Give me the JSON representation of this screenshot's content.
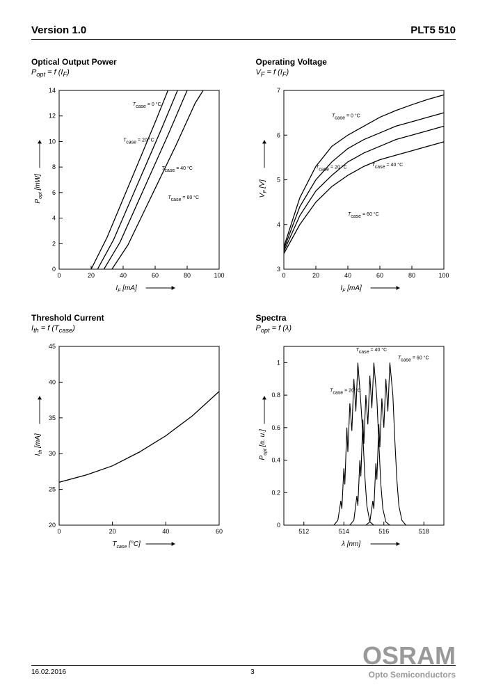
{
  "header": {
    "version": "Version 1.0",
    "part": "PLT5 510"
  },
  "footer": {
    "date": "16.02.2016",
    "page": "3"
  },
  "logo": {
    "brand": "OSRAM",
    "sub": "Opto Semiconductors",
    "color": "#999999"
  },
  "colors": {
    "stroke": "#000000",
    "grid": "#000000",
    "background": "#ffffff"
  },
  "chart1": {
    "type": "line",
    "title": "Optical Output Power",
    "subtitle_html": "P_opt = f (I_F)",
    "xlabel": "I_F [mA]",
    "ylabel": "P_opt [mW]",
    "xlim": [
      0,
      100
    ],
    "xtick_step": 20,
    "ylim": [
      0,
      14
    ],
    "ytick_step": 2,
    "line_width": 1.3,
    "curves": [
      {
        "label": "T_case = 0 °C",
        "label_x": 46,
        "label_y": 12.8,
        "points": [
          [
            20,
            0
          ],
          [
            30,
            2.5
          ],
          [
            40,
            5.5
          ],
          [
            50,
            8.5
          ],
          [
            60,
            11.5
          ],
          [
            68,
            14
          ]
        ]
      },
      {
        "label": "T_case = 20 °C",
        "label_x": 40,
        "label_y": 10,
        "points": [
          [
            24,
            0
          ],
          [
            34,
            2.3
          ],
          [
            44,
            5.2
          ],
          [
            54,
            8.1
          ],
          [
            64,
            11
          ],
          [
            74,
            14
          ]
        ]
      },
      {
        "label": "T_case = 40 °C",
        "label_x": 64,
        "label_y": 7.8,
        "points": [
          [
            28,
            0
          ],
          [
            38,
            2.1
          ],
          [
            48,
            4.9
          ],
          [
            58,
            7.7
          ],
          [
            68,
            10.5
          ],
          [
            80,
            14
          ]
        ]
      },
      {
        "label": "T_case = 60 °C",
        "label_x": 68,
        "label_y": 5.5,
        "points": [
          [
            33,
            0
          ],
          [
            43,
            1.9
          ],
          [
            53,
            4.5
          ],
          [
            63,
            7.1
          ],
          [
            73,
            9.7
          ],
          [
            85,
            13
          ],
          [
            90,
            14
          ]
        ]
      }
    ]
  },
  "chart2": {
    "type": "line",
    "title": "Operating Voltage",
    "subtitle_html": "V_F = f (I_F)",
    "xlabel": "I_F [mA]",
    "ylabel": "V_F [V]",
    "xlim": [
      0,
      100
    ],
    "xtick_step": 20,
    "ylim": [
      3,
      7
    ],
    "ytick_step": 1,
    "line_width": 1.3,
    "curves": [
      {
        "label": "T_case = 0 °C",
        "label_x": 30,
        "label_y": 6.4,
        "points": [
          [
            0,
            3.5
          ],
          [
            10,
            4.6
          ],
          [
            20,
            5.3
          ],
          [
            30,
            5.75
          ],
          [
            40,
            6.0
          ],
          [
            50,
            6.2
          ],
          [
            60,
            6.4
          ],
          [
            70,
            6.55
          ],
          [
            80,
            6.68
          ],
          [
            90,
            6.8
          ],
          [
            100,
            6.9
          ]
        ]
      },
      {
        "label": "T_case = 20 °C",
        "label_x": 20,
        "label_y": 5.25,
        "points": [
          [
            0,
            3.45
          ],
          [
            10,
            4.4
          ],
          [
            20,
            5.0
          ],
          [
            30,
            5.4
          ],
          [
            40,
            5.7
          ],
          [
            50,
            5.9
          ],
          [
            60,
            6.05
          ],
          [
            70,
            6.2
          ],
          [
            80,
            6.3
          ],
          [
            90,
            6.4
          ],
          [
            100,
            6.5
          ]
        ]
      },
      {
        "label": "T_case = 40 °C",
        "label_x": 55,
        "label_y": 5.3,
        "points": [
          [
            0,
            3.4
          ],
          [
            10,
            4.2
          ],
          [
            20,
            4.75
          ],
          [
            30,
            5.1
          ],
          [
            40,
            5.4
          ],
          [
            50,
            5.6
          ],
          [
            60,
            5.75
          ],
          [
            70,
            5.9
          ],
          [
            80,
            6.0
          ],
          [
            90,
            6.1
          ],
          [
            100,
            6.2
          ]
        ]
      },
      {
        "label": "T_case = 60 °C",
        "label_x": 40,
        "label_y": 4.2,
        "points": [
          [
            0,
            3.35
          ],
          [
            10,
            4.0
          ],
          [
            20,
            4.5
          ],
          [
            30,
            4.85
          ],
          [
            40,
            5.1
          ],
          [
            50,
            5.3
          ],
          [
            60,
            5.45
          ],
          [
            70,
            5.55
          ],
          [
            80,
            5.65
          ],
          [
            90,
            5.75
          ],
          [
            100,
            5.85
          ]
        ]
      }
    ]
  },
  "chart3": {
    "type": "line",
    "title": "Threshold Current",
    "subtitle_html": "I_th = f (T_case)",
    "xlabel": "T_case [°C]",
    "ylabel": "I_th [mA]",
    "xlim": [
      0,
      60
    ],
    "xtick_step": 20,
    "ylim": [
      20,
      45
    ],
    "ytick_step": 5,
    "line_width": 1.3,
    "curves": [
      {
        "points": [
          [
            0,
            26
          ],
          [
            10,
            27
          ],
          [
            20,
            28.3
          ],
          [
            30,
            30.2
          ],
          [
            40,
            32.5
          ],
          [
            50,
            35.3
          ],
          [
            60,
            38.7
          ]
        ]
      }
    ]
  },
  "chart4": {
    "type": "line",
    "title": "Spectra",
    "subtitle_html": "P_opt = f (λ)",
    "xlabel": "λ [nm]",
    "ylabel": "P_opt [a. u.]",
    "xlim": [
      511,
      519
    ],
    "xticks": [
      512,
      514,
      516,
      518
    ],
    "ylim": [
      0,
      1.1
    ],
    "ytick_step": 0.2,
    "ymax_tick": 1.0,
    "line_width": 1.1,
    "curves": [
      {
        "label": "T_case = 20 °C",
        "label_x": 513.3,
        "label_y": 0.82,
        "points": [
          [
            513.5,
            0.0
          ],
          [
            513.7,
            0.03
          ],
          [
            513.85,
            0.15
          ],
          [
            513.9,
            0.1
          ],
          [
            514.0,
            0.35
          ],
          [
            514.05,
            0.25
          ],
          [
            514.15,
            0.6
          ],
          [
            514.2,
            0.45
          ],
          [
            514.3,
            0.75
          ],
          [
            514.4,
            0.58
          ],
          [
            514.5,
            0.9
          ],
          [
            514.6,
            0.7
          ],
          [
            514.7,
            1.0
          ],
          [
            514.85,
            0.75
          ],
          [
            514.95,
            0.55
          ],
          [
            515.05,
            0.3
          ],
          [
            515.15,
            0.12
          ],
          [
            515.3,
            0.02
          ],
          [
            515.5,
            0.0
          ]
        ]
      },
      {
        "label": "T_case = 40 °C",
        "label_x": 514.6,
        "label_y": 1.07,
        "points": [
          [
            514.3,
            0.0
          ],
          [
            514.5,
            0.03
          ],
          [
            514.65,
            0.18
          ],
          [
            514.7,
            0.12
          ],
          [
            514.8,
            0.4
          ],
          [
            514.85,
            0.3
          ],
          [
            514.95,
            0.65
          ],
          [
            515.0,
            0.5
          ],
          [
            515.1,
            0.8
          ],
          [
            515.2,
            0.62
          ],
          [
            515.3,
            0.92
          ],
          [
            515.4,
            0.72
          ],
          [
            515.5,
            1.0
          ],
          [
            515.65,
            0.78
          ],
          [
            515.75,
            0.5
          ],
          [
            515.85,
            0.25
          ],
          [
            515.95,
            0.1
          ],
          [
            516.1,
            0.02
          ],
          [
            516.3,
            0.0
          ]
        ]
      },
      {
        "label": "T_case = 60 °C",
        "label_x": 516.7,
        "label_y": 1.02,
        "points": [
          [
            515.1,
            0.0
          ],
          [
            515.3,
            0.02
          ],
          [
            515.45,
            0.15
          ],
          [
            515.5,
            0.1
          ],
          [
            515.6,
            0.38
          ],
          [
            515.65,
            0.28
          ],
          [
            515.75,
            0.62
          ],
          [
            515.8,
            0.48
          ],
          [
            515.9,
            0.78
          ],
          [
            516.0,
            0.6
          ],
          [
            516.1,
            0.9
          ],
          [
            516.2,
            0.7
          ],
          [
            516.3,
            1.0
          ],
          [
            516.45,
            0.8
          ],
          [
            516.55,
            0.52
          ],
          [
            516.65,
            0.28
          ],
          [
            516.75,
            0.12
          ],
          [
            516.9,
            0.03
          ],
          [
            517.1,
            0.0
          ]
        ]
      }
    ]
  }
}
